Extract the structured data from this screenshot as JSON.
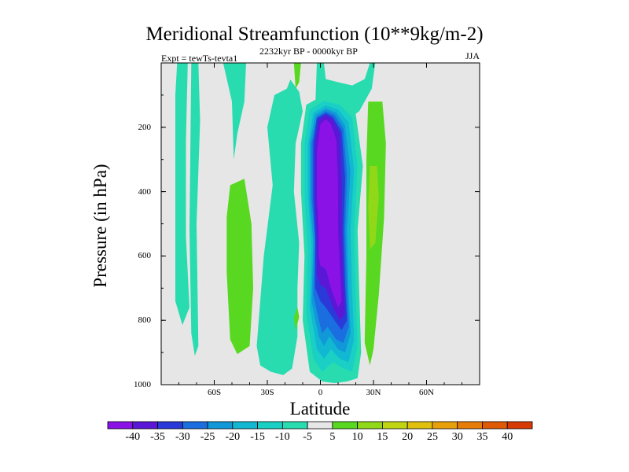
{
  "chart_data": {
    "type": "contour",
    "title": "Meridional Streamfunction (10**9kg/m-2)",
    "subtitle": "2232kyr BP - 0000kyr BP",
    "left_label": "Expt = tewTs-tevta1",
    "right_label": "JJA",
    "xlabel": "Latitude",
    "ylabel": "Pressure (in hPa)",
    "xlim": [
      -90,
      90
    ],
    "ylim": [
      1000,
      0
    ],
    "x_ticks": [
      {
        "value": -60,
        "label": "60S"
      },
      {
        "value": -30,
        "label": "30S"
      },
      {
        "value": 0,
        "label": "0"
      },
      {
        "value": 30,
        "label": "30N"
      },
      {
        "value": 60,
        "label": "60N"
      }
    ],
    "y_ticks": [
      {
        "value": 200,
        "label": "200"
      },
      {
        "value": 400,
        "label": "400"
      },
      {
        "value": 600,
        "label": "600"
      },
      {
        "value": 800,
        "label": "800"
      },
      {
        "value": 1000,
        "label": "1000"
      }
    ],
    "background_color": "#e6e6e6",
    "colorbar": {
      "levels": [
        -40,
        -35,
        -30,
        -25,
        -20,
        -15,
        -10,
        -5,
        5,
        10,
        15,
        20,
        25,
        30,
        35,
        40
      ],
      "labels": [
        "-40",
        "-35",
        "-30",
        "-25",
        "-20",
        "-15",
        "-10",
        "-5",
        "5",
        "10",
        "15",
        "20",
        "25",
        "30",
        "35",
        "40"
      ],
      "colors": [
        "#8a12e6",
        "#5a18d6",
        "#2a3ad8",
        "#1a6ee0",
        "#1098d8",
        "#12b8d2",
        "#1ad0c4",
        "#28dcb0",
        "#e6e6e6",
        "#58d820",
        "#90d818",
        "#c0d412",
        "#e0c00c",
        "#e8a00a",
        "#e67d08",
        "#e05a06",
        "#d83a04"
      ]
    },
    "regions": [
      {
        "value": -7,
        "points": [
          [
            -81,
            0
          ],
          [
            -75,
            0
          ],
          [
            -76,
            240
          ],
          [
            -76,
            540
          ],
          [
            -74,
            760
          ],
          [
            -78,
            815
          ],
          [
            -82,
            740
          ],
          [
            -82,
            400
          ],
          [
            -82,
            100
          ]
        ]
      },
      {
        "value": -7,
        "points": [
          [
            -73,
            0
          ],
          [
            -69,
            0
          ],
          [
            -68,
            180
          ],
          [
            -70,
            500
          ],
          [
            -69,
            880
          ],
          [
            -71,
            910
          ],
          [
            -73,
            840
          ],
          [
            -74,
            520
          ]
        ]
      },
      {
        "value": -7,
        "points": [
          [
            -55,
            0
          ],
          [
            -42,
            0
          ],
          [
            -43,
            120
          ],
          [
            -47,
            220
          ],
          [
            -49,
            300
          ],
          [
            -50,
            120
          ]
        ]
      },
      {
        "value": -7,
        "points": [
          [
            -19,
            80
          ],
          [
            -17,
            52
          ],
          [
            -12,
            90
          ],
          [
            -10,
            150
          ],
          [
            -14,
            250
          ],
          [
            -15,
            400
          ],
          [
            -12,
            560
          ],
          [
            -13,
            700
          ],
          [
            -13,
            850
          ],
          [
            -16,
            950
          ],
          [
            -21,
            970
          ],
          [
            -28,
            960
          ],
          [
            -34,
            940
          ],
          [
            -36,
            880
          ],
          [
            -32,
            600
          ],
          [
            -27,
            380
          ],
          [
            -30,
            200
          ],
          [
            -26,
            100
          ]
        ]
      },
      {
        "value": 7,
        "points": [
          [
            -51,
            380
          ],
          [
            -43,
            360
          ],
          [
            -39,
            500
          ],
          [
            -38,
            700
          ],
          [
            -40,
            880
          ],
          [
            -47,
            905
          ],
          [
            -51,
            860
          ],
          [
            -53,
            650
          ],
          [
            -53,
            480
          ]
        ]
      },
      {
        "value": 7,
        "points": [
          [
            27,
            120
          ],
          [
            35,
            120
          ],
          [
            37,
            250
          ],
          [
            36,
            480
          ],
          [
            33,
            720
          ],
          [
            30,
            890
          ],
          [
            28,
            940
          ],
          [
            25,
            870
          ],
          [
            26,
            600
          ],
          [
            26,
            300
          ]
        ]
      },
      {
        "value": 12,
        "points": [
          [
            28,
            320
          ],
          [
            32,
            320
          ],
          [
            33,
            420
          ],
          [
            31,
            560
          ],
          [
            28,
            580
          ],
          [
            27,
            450
          ]
        ]
      },
      {
        "value": 7,
        "points": [
          [
            -15,
            0
          ],
          [
            -11,
            0
          ],
          [
            -12,
            60
          ],
          [
            -14,
            80
          ]
        ]
      },
      {
        "value": 7,
        "points": [
          [
            -15,
            790
          ],
          [
            -13,
            760
          ],
          [
            -12,
            790
          ],
          [
            -14,
            830
          ]
        ]
      },
      {
        "value": -7,
        "points": [
          [
            -2,
            0
          ],
          [
            2,
            0
          ],
          [
            3,
            50
          ],
          [
            10,
            60
          ],
          [
            18,
            70
          ],
          [
            25,
            50
          ],
          [
            28,
            0
          ],
          [
            31,
            0
          ],
          [
            29,
            80
          ],
          [
            22,
            150
          ],
          [
            16,
            175
          ],
          [
            -3,
            150
          ]
        ]
      },
      {
        "value": -7,
        "points": [
          [
            -16,
            170
          ],
          [
            -14,
            155
          ],
          [
            -13,
            180
          ],
          [
            -15,
            195
          ]
        ]
      },
      {
        "value": -7,
        "points": [
          [
            -8,
            130
          ],
          [
            2,
            100
          ],
          [
            12,
            110
          ],
          [
            20,
            160
          ],
          [
            24,
            320
          ],
          [
            21,
            520
          ],
          [
            22,
            720
          ],
          [
            23,
            900
          ],
          [
            21,
            980
          ],
          [
            15,
            990
          ],
          [
            8,
            995
          ],
          [
            1,
            990
          ],
          [
            -6,
            960
          ],
          [
            -10,
            800
          ],
          [
            -9,
            600
          ],
          [
            -11,
            400
          ],
          [
            -11,
            250
          ]
        ]
      },
      {
        "value": -12,
        "points": [
          [
            -6,
            145
          ],
          [
            2,
            118
          ],
          [
            11,
            130
          ],
          [
            18,
            170
          ],
          [
            21,
            320
          ],
          [
            19,
            520
          ],
          [
            20,
            720
          ],
          [
            21,
            880
          ],
          [
            18,
            960
          ],
          [
            13,
            950
          ],
          [
            7,
            930
          ],
          [
            1,
            960
          ],
          [
            -4,
            920
          ],
          [
            -8,
            780
          ],
          [
            -7,
            580
          ],
          [
            -9,
            420
          ],
          [
            -9,
            250
          ]
        ]
      },
      {
        "value": -17,
        "points": [
          [
            -4,
            155
          ],
          [
            3,
            132
          ],
          [
            10,
            145
          ],
          [
            16,
            185
          ],
          [
            19,
            330
          ],
          [
            17,
            520
          ],
          [
            18,
            720
          ],
          [
            19,
            860
          ],
          [
            16,
            930
          ],
          [
            11,
            920
          ],
          [
            6,
            890
          ],
          [
            2,
            920
          ],
          [
            -2,
            890
          ],
          [
            -6,
            760
          ],
          [
            -5,
            570
          ],
          [
            -7,
            420
          ],
          [
            -7,
            250
          ]
        ]
      },
      {
        "value": -22,
        "points": [
          [
            -3,
            162
          ],
          [
            3,
            142
          ],
          [
            9,
            155
          ],
          [
            14,
            195
          ],
          [
            17,
            340
          ],
          [
            15,
            520
          ],
          [
            16,
            720
          ],
          [
            17,
            840
          ],
          [
            14,
            900
          ],
          [
            10,
            890
          ],
          [
            5,
            850
          ],
          [
            2,
            880
          ],
          [
            -1,
            850
          ],
          [
            -5,
            740
          ],
          [
            -4,
            560
          ],
          [
            -6,
            420
          ],
          [
            -6,
            250
          ]
        ]
      },
      {
        "value": -27,
        "points": [
          [
            -2,
            168
          ],
          [
            3,
            150
          ],
          [
            8,
            162
          ],
          [
            13,
            205
          ],
          [
            15,
            350
          ],
          [
            14,
            520
          ],
          [
            15,
            700
          ],
          [
            16,
            820
          ],
          [
            13,
            870
          ],
          [
            9,
            860
          ],
          [
            4,
            820
          ],
          [
            1,
            840
          ],
          [
            0,
            820
          ],
          [
            -4,
            720
          ],
          [
            -3,
            550
          ],
          [
            -5,
            420
          ],
          [
            -5,
            250
          ]
        ]
      },
      {
        "value": -32,
        "points": [
          [
            -2,
            172
          ],
          [
            3,
            156
          ],
          [
            7,
            168
          ],
          [
            12,
            212
          ],
          [
            14,
            360
          ],
          [
            13,
            520
          ],
          [
            14,
            690
          ],
          [
            15,
            800
          ],
          [
            12,
            830
          ],
          [
            8,
            800
          ],
          [
            3,
            760
          ],
          [
            0,
            740
          ],
          [
            -3,
            700
          ],
          [
            -3,
            550
          ],
          [
            -4,
            420
          ],
          [
            -4,
            250
          ]
        ]
      },
      {
        "value": -37,
        "points": [
          [
            -1,
            178
          ],
          [
            3,
            162
          ],
          [
            7,
            175
          ],
          [
            11,
            220
          ],
          [
            12,
            370
          ],
          [
            12,
            520
          ],
          [
            13,
            670
          ],
          [
            14,
            780
          ],
          [
            11,
            800
          ],
          [
            7,
            760
          ],
          [
            3,
            700
          ],
          [
            0,
            690
          ],
          [
            -2,
            660
          ],
          [
            -2,
            540
          ],
          [
            -3,
            420
          ],
          [
            -3,
            250
          ]
        ]
      },
      {
        "value": -42,
        "points": [
          [
            0,
            190
          ],
          [
            3,
            175
          ],
          [
            6,
            190
          ],
          [
            9,
            240
          ],
          [
            10,
            380
          ],
          [
            10,
            520
          ],
          [
            11,
            640
          ],
          [
            12,
            740
          ],
          [
            10,
            760
          ],
          [
            6,
            700
          ],
          [
            3,
            640
          ],
          [
            0,
            630
          ],
          [
            -1,
            600
          ],
          [
            -1,
            520
          ],
          [
            -2,
            420
          ],
          [
            -2,
            280
          ]
        ]
      }
    ]
  }
}
